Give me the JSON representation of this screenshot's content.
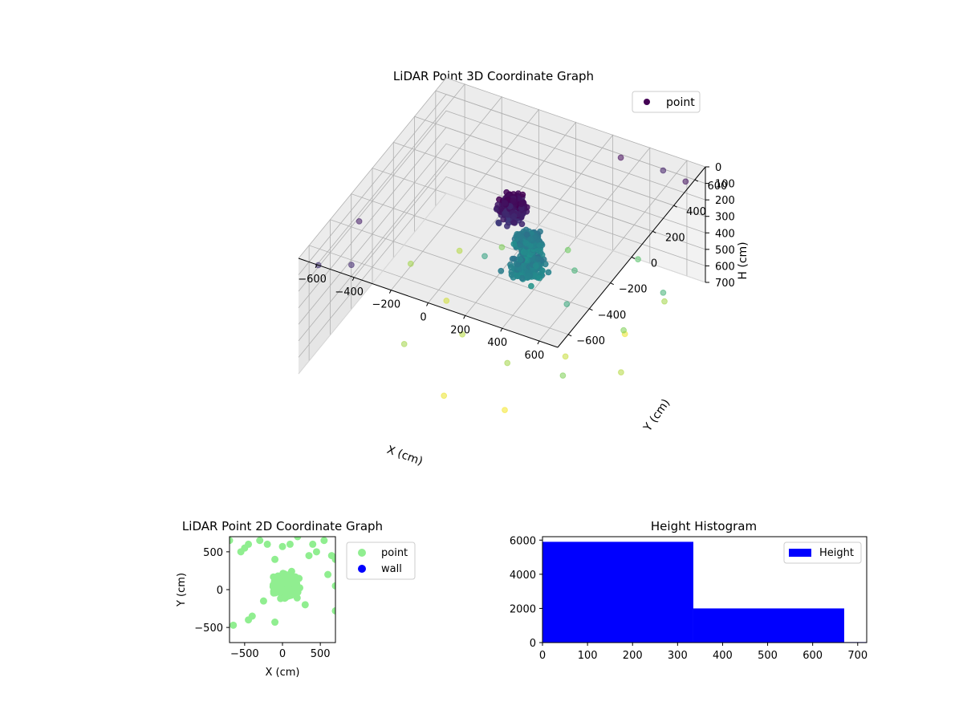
{
  "chart_data": [
    {
      "type": "scatter",
      "projection": "3d",
      "title": "LiDAR Point 3D Coordinate Graph",
      "xlabel": "X (cm)",
      "ylabel": "Y (cm)",
      "zlabel": "H (cm)",
      "xlim": [
        -700,
        700
      ],
      "ylim": [
        -700,
        700
      ],
      "zlim": [
        700,
        0
      ],
      "xticks": [
        -600,
        -400,
        -200,
        0,
        200,
        400,
        600
      ],
      "yticks": [
        -600,
        -400,
        -200,
        0,
        200,
        400,
        600
      ],
      "zticks": [
        0,
        100,
        200,
        300,
        400,
        500,
        600,
        700
      ],
      "grid": true,
      "legend": {
        "position": "top-right",
        "entries": [
          {
            "label": "point",
            "color": "#440154"
          }
        ]
      },
      "colormap": "viridis",
      "series": [
        {
          "name": "point",
          "clusters": [
            {
              "x": 0,
              "y": 100,
              "h": 50,
              "spread": [
                60,
                60,
                60
              ]
            },
            {
              "x": 120,
              "y": 40,
              "h": 300,
              "spread": [
                70,
                80,
                40
              ]
            },
            {
              "x": 40,
              "y": 180,
              "h": 300,
              "spread": [
                50,
                50,
                40
              ]
            }
          ],
          "points": [
            {
              "x": -650,
              "y": -600,
              "h": 100
            },
            {
              "x": -600,
              "y": -300,
              "h": 50
            },
            {
              "x": -500,
              "y": -550,
              "h": 80
            },
            {
              "x": 650,
              "y": 600,
              "h": 30
            },
            {
              "x": 500,
              "y": 650,
              "h": 60
            },
            {
              "x": 300,
              "y": 600,
              "h": 20
            },
            {
              "x": -300,
              "y": 0,
              "h": 650
            },
            {
              "x": -100,
              "y": -200,
              "h": 620
            },
            {
              "x": 200,
              "y": -300,
              "h": 600
            },
            {
              "x": 400,
              "y": -100,
              "h": 640
            },
            {
              "x": 550,
              "y": 200,
              "h": 680
            },
            {
              "x": 650,
              "y": 400,
              "h": 600
            },
            {
              "x": 600,
              "y": 100,
              "h": 560
            },
            {
              "x": 450,
              "y": 500,
              "h": 500
            },
            {
              "x": -400,
              "y": 300,
              "h": 620
            },
            {
              "x": 100,
              "y": 450,
              "h": 540
            },
            {
              "x": -200,
              "y": 350,
              "h": 560
            },
            {
              "x": 300,
              "y": -500,
              "h": 690
            },
            {
              "x": -550,
              "y": 100,
              "h": 600
            },
            {
              "x": 0,
              "y": -550,
              "h": 680
            },
            {
              "x": 250,
              "y": 250,
              "h": 450
            },
            {
              "x": -150,
              "y": 100,
              "h": 400
            },
            {
              "x": 350,
              "y": 0,
              "h": 420
            },
            {
              "x": 500,
              "y": -300,
              "h": 560
            },
            {
              "x": 700,
              "y": -100,
              "h": 620
            },
            {
              "x": 700,
              "y": 300,
              "h": 450
            },
            {
              "x": -300,
              "y": -400,
              "h": 600
            }
          ]
        }
      ]
    },
    {
      "type": "scatter",
      "title": "LiDAR Point 2D Coordinate Graph",
      "xlabel": "X (cm)",
      "ylabel": "Y (cm)",
      "xlim": [
        -700,
        700
      ],
      "ylim": [
        -700,
        700
      ],
      "xticks": [
        -500,
        0,
        500
      ],
      "yticks": [
        -500,
        0,
        500
      ],
      "legend": {
        "position": "outside-right",
        "entries": [
          {
            "label": "point",
            "color": "#90ee90"
          },
          {
            "label": "wall",
            "color": "#0000ff"
          }
        ]
      },
      "series": [
        {
          "name": "point",
          "color": "#90ee90",
          "cluster": {
            "x": 50,
            "y": 50,
            "spread": [
              150,
              130
            ]
          },
          "points": [
            {
              "x": -700,
              "y": 650
            },
            {
              "x": -500,
              "y": 550
            },
            {
              "x": -450,
              "y": 600
            },
            {
              "x": -300,
              "y": 650
            },
            {
              "x": -200,
              "y": 600
            },
            {
              "x": -100,
              "y": 400
            },
            {
              "x": 0,
              "y": 570
            },
            {
              "x": 100,
              "y": 600
            },
            {
              "x": 200,
              "y": 700
            },
            {
              "x": 400,
              "y": 600
            },
            {
              "x": 450,
              "y": 500
            },
            {
              "x": 550,
              "y": 650
            },
            {
              "x": 650,
              "y": 450
            },
            {
              "x": 700,
              "y": 400
            },
            {
              "x": 600,
              "y": 200
            },
            {
              "x": 700,
              "y": 50
            },
            {
              "x": -400,
              "y": -350
            },
            {
              "x": -450,
              "y": -400
            },
            {
              "x": -650,
              "y": -470
            },
            {
              "x": -100,
              "y": -430
            },
            {
              "x": 700,
              "y": -280
            },
            {
              "x": -550,
              "y": 500
            },
            {
              "x": 350,
              "y": 450
            },
            {
              "x": -250,
              "y": -150
            },
            {
              "x": 300,
              "y": -200
            }
          ]
        },
        {
          "name": "wall",
          "color": "#0000ff",
          "points": []
        }
      ]
    },
    {
      "type": "bar",
      "subtype": "histogram",
      "title": "Height Histogram",
      "xlim": [
        0,
        720
      ],
      "ylim": [
        0,
        6200
      ],
      "xticks": [
        0,
        100,
        200,
        300,
        400,
        500,
        600,
        700
      ],
      "yticks": [
        0,
        2000,
        4000,
        6000
      ],
      "legend": {
        "position": "top-right",
        "entries": [
          {
            "label": "Height",
            "color": "#0000ff"
          }
        ]
      },
      "series": [
        {
          "name": "Height",
          "color": "#0000ff",
          "bins": [
            {
              "from": 0,
              "to": 335,
              "value": 5900
            },
            {
              "from": 335,
              "to": 670,
              "value": 2000
            },
            {
              "from": 670,
              "to": 1005,
              "value": 30
            }
          ]
        }
      ]
    }
  ]
}
